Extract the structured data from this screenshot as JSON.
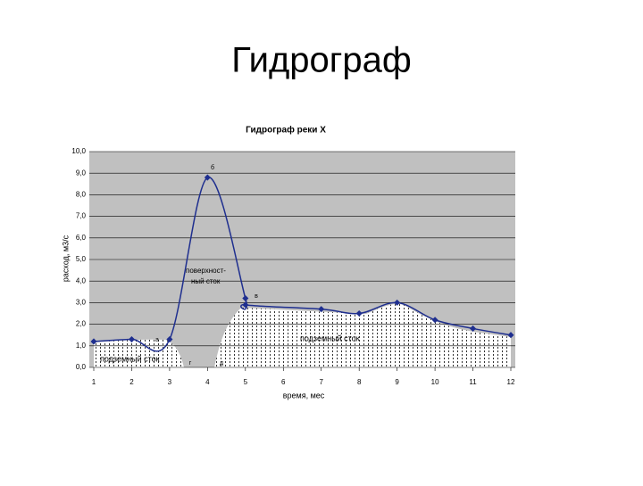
{
  "slide_title": "Гидрограф",
  "chart_data": {
    "type": "line",
    "title": "Гидрограф реки Х",
    "x_label": "время, мес",
    "y_label": "расход, м3/с",
    "x": [
      1,
      2,
      3,
      4,
      5,
      5,
      7,
      8,
      9,
      10,
      11,
      12
    ],
    "series": [
      {
        "name": "расход",
        "color": "#1f2f8f",
        "values": [
          1.2,
          1.3,
          1.3,
          8.8,
          3.2,
          2.9,
          2.7,
          2.5,
          3.0,
          2.2,
          1.8,
          1.5
        ]
      }
    ],
    "xlim": [
      1,
      12
    ],
    "xticks": [
      1,
      2,
      3,
      4,
      5,
      6,
      7,
      8,
      9,
      10,
      11,
      12
    ],
    "ylim": [
      0,
      10
    ],
    "yticks": [
      {
        "value": 0,
        "label": "0,0"
      },
      {
        "value": 1,
        "label": "1,0"
      },
      {
        "value": 2,
        "label": "2,0"
      },
      {
        "value": 3,
        "label": "3,0"
      },
      {
        "value": 4,
        "label": "4,0"
      },
      {
        "value": 5,
        "label": "5,0"
      },
      {
        "value": 6,
        "label": "6,0"
      },
      {
        "value": 7,
        "label": "7,0"
      },
      {
        "value": 8,
        "label": "8,0"
      },
      {
        "value": 9,
        "label": "9,0"
      },
      {
        "value": 10,
        "label": "10,0"
      }
    ],
    "grid": true,
    "annotations": [
      "поверхност-",
      "ный сток",
      "подземный сток",
      "подземный сток",
      "а",
      "б",
      "в",
      "г",
      "д"
    ]
  }
}
